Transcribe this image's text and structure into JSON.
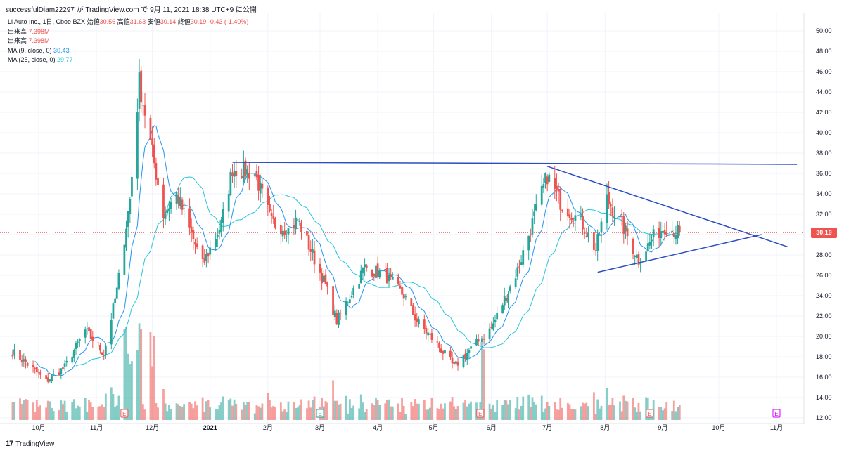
{
  "header": {
    "publish_info": "successfulDiam22297 が TradingView.com で 9月 11, 2021 18:38 UTC+9 に公開"
  },
  "legend": {
    "symbol": "Li Auto Inc., 1日, Cboe BZX",
    "ohlc": {
      "open_label": "始値",
      "open": "30.56",
      "high_label": "高値",
      "high": "31.63",
      "low_label": "安値",
      "low": "30.14",
      "close_label": "終値",
      "close": "30.19",
      "change": "-0.43 (-1.40%)"
    },
    "volume_rows": [
      {
        "label": "出来高",
        "value": "7.398M"
      },
      {
        "label": "出来高",
        "value": "7.398M"
      }
    ],
    "ma9": {
      "label": "MA (9, close, 0)",
      "value": "30.43"
    },
    "ma25": {
      "label": "MA (25, close, 0)",
      "value": "29.77"
    }
  },
  "footer": {
    "brand": "TradingView",
    "logo": "17"
  },
  "earnings_marker": "E",
  "colors": {
    "up": "#26a69a",
    "down": "#ef5350",
    "ma9": "#2196f3",
    "ma25": "#26c6da",
    "trendline": "#2b4cc4",
    "grid": "#f0f3fa",
    "axis_text": "#131722"
  },
  "chart_data": {
    "type": "candlestick",
    "yaxis": {
      "min": 12,
      "max": 50,
      "ticks": [
        "12.00",
        "14.00",
        "16.00",
        "18.00",
        "20.00",
        "22.00",
        "24.00",
        "26.00",
        "28.00",
        "30.00",
        "32.00",
        "34.00",
        "36.00",
        "38.00",
        "40.00",
        "42.00",
        "44.00",
        "46.00",
        "48.00",
        "50.00"
      ]
    },
    "current_price": "30.19",
    "xaxis_labels": [
      {
        "label": "10月",
        "date": "2020-10-01"
      },
      {
        "label": "11月",
        "date": "2020-11-01"
      },
      {
        "label": "12月",
        "date": "2020-12-01"
      },
      {
        "label": "2021",
        "date": "2021-01-01"
      },
      {
        "label": "2月",
        "date": "2021-02-01"
      },
      {
        "label": "3月",
        "date": "2021-03-01"
      },
      {
        "label": "4月",
        "date": "2021-04-01"
      },
      {
        "label": "5月",
        "date": "2021-05-01"
      },
      {
        "label": "6月",
        "date": "2021-06-01"
      },
      {
        "label": "7月",
        "date": "2021-07-01"
      },
      {
        "label": "8月",
        "date": "2021-08-01"
      },
      {
        "label": "9月",
        "date": "2021-09-01"
      },
      {
        "label": "10月",
        "date": "2021-10-01"
      },
      {
        "label": "11月",
        "date": "2021-11-01"
      }
    ],
    "date_range": [
      "2020-09-17",
      "2021-09-10"
    ],
    "close_keyframes": [
      [
        "2020-09-17",
        18.5
      ],
      [
        "2020-09-28",
        16.8
      ],
      [
        "2020-10-05",
        15.6
      ],
      [
        "2020-10-15",
        17.0
      ],
      [
        "2020-10-26",
        20.6
      ],
      [
        "2020-11-05",
        18.3
      ],
      [
        "2020-11-12",
        24.5
      ],
      [
        "2020-11-19",
        33.5
      ],
      [
        "2020-11-24",
        45.0
      ],
      [
        "2020-11-30",
        39.0
      ],
      [
        "2020-12-07",
        32.0
      ],
      [
        "2020-12-14",
        34.0
      ],
      [
        "2020-12-28",
        27.0
      ],
      [
        "2021-01-07",
        31.0
      ],
      [
        "2021-01-13",
        36.5
      ],
      [
        "2021-01-25",
        36.0
      ],
      [
        "2021-02-03",
        31.2
      ],
      [
        "2021-02-12",
        30.5
      ],
      [
        "2021-02-17",
        31.5
      ],
      [
        "2021-03-04",
        25.0
      ],
      [
        "2021-03-10",
        21.5
      ],
      [
        "2021-03-25",
        26.8
      ],
      [
        "2021-04-05",
        26.0
      ],
      [
        "2021-04-15",
        24.0
      ],
      [
        "2021-04-22",
        21.5
      ],
      [
        "2021-05-03",
        19.2
      ],
      [
        "2021-05-12",
        17.0
      ],
      [
        "2021-05-18",
        18.2
      ],
      [
        "2021-06-01",
        20.8
      ],
      [
        "2021-06-15",
        26.5
      ],
      [
        "2021-07-01",
        35.8
      ],
      [
        "2021-07-08",
        33.2
      ],
      [
        "2021-07-20",
        31.0
      ],
      [
        "2021-07-27",
        28.5
      ],
      [
        "2021-08-02",
        33.5
      ],
      [
        "2021-08-10",
        31.0
      ],
      [
        "2021-08-19",
        27.5
      ],
      [
        "2021-08-27",
        29.8
      ],
      [
        "2021-09-02",
        30.8
      ],
      [
        "2021-09-10",
        30.19
      ]
    ],
    "volume_spike_dates": [
      "2020-11-17",
      "2020-11-19",
      "2020-11-24",
      "2020-12-01",
      "2021-05-28"
    ],
    "earnings_dates": [
      "2020-11-16",
      "2021-03-01",
      "2021-05-26",
      "2021-08-25",
      "2021-11-01"
    ],
    "trendlines": [
      {
        "name": "resistance",
        "from": [
          "2021-01-13",
          37.1
        ],
        "to": [
          "2021-11-12",
          36.9
        ]
      },
      {
        "name": "descending",
        "from": [
          "2021-07-01",
          36.7
        ],
        "to": [
          "2021-11-07",
          28.8
        ]
      },
      {
        "name": "ascending",
        "from": [
          "2021-07-28",
          26.3
        ],
        "to": [
          "2021-10-24",
          30.0
        ]
      }
    ]
  }
}
